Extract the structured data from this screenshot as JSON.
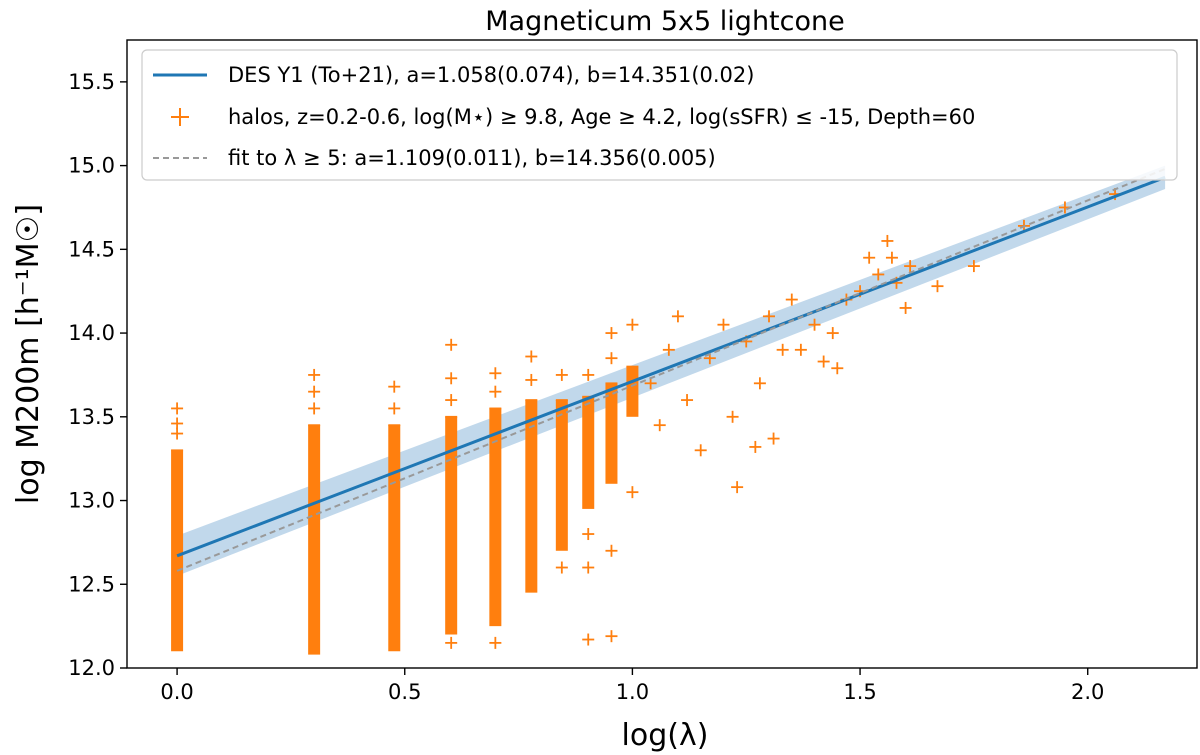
{
  "chart_data": {
    "type": "scatter",
    "title": "Magneticum 5x5 lightcone",
    "xlabel": "log(λ)",
    "ylabel": "log M200m [h⁻¹M☉]",
    "xlim": [
      -0.11,
      2.24
    ],
    "ylim": [
      12.0,
      15.75
    ],
    "x_ticks": [
      0.0,
      0.5,
      1.0,
      1.5,
      2.0
    ],
    "y_ticks": [
      12.0,
      12.5,
      13.0,
      13.5,
      14.0,
      14.5,
      15.0,
      15.5
    ],
    "x_tick_labels": [
      "0.0",
      "0.5",
      "1.0",
      "1.5",
      "2.0"
    ],
    "y_tick_labels": [
      "12.0",
      "12.5",
      "13.0",
      "13.5",
      "14.0",
      "14.5",
      "15.0",
      "15.5"
    ],
    "grid": false,
    "legend_position": "top-left",
    "colors": {
      "des": "#1f77b4",
      "band": "#a6c8e3",
      "halos": "#ff7f0e",
      "fit": "#999999"
    },
    "legend": {
      "des": "DES Y1 (To+21), a=1.058(0.074), b=14.351(0.02)",
      "halos": "halos, z=0.2-0.6, log(M⋆) ≥ 9.8, Age ≥ 4.2, log(sSFR) ≤ -15, Depth=60",
      "fit": "fit to λ ≥ 5: a=1.109(0.011), b=14.356(0.005)"
    },
    "series": [
      {
        "name": "DES Y1 (To+21), a=1.058(0.074), b=14.351(0.02)",
        "kind": "line",
        "x": [
          0.0,
          2.17
        ],
        "y": [
          12.67,
          14.93
        ],
        "band_upper": [
          12.79,
          15.0
        ],
        "band_lower": [
          12.55,
          14.86
        ]
      },
      {
        "name": "fit to λ ≥ 5: a=1.109(0.011), b=14.356(0.005)",
        "kind": "dashed-line",
        "x": [
          0.0,
          2.17
        ],
        "y": [
          12.58,
          14.98
        ]
      },
      {
        "name": "halos, z=0.2-0.6, log(M⋆) ≥ 9.8, Age ≥ 4.2, log(sSFR) ≤ -15, Depth=60",
        "kind": "scatter",
        "columns": [
          {
            "x": 0.0,
            "ymin": 12.1,
            "ymax": 13.3,
            "outliers": [
              13.4,
              13.46,
              13.55
            ]
          },
          {
            "x": 0.301,
            "ymin": 12.08,
            "ymax": 13.45,
            "outliers": [
              13.55,
              13.65,
              13.75
            ]
          },
          {
            "x": 0.477,
            "ymin": 12.1,
            "ymax": 13.45,
            "outliers": [
              13.55,
              13.68
            ]
          },
          {
            "x": 0.602,
            "ymin": 12.2,
            "ymax": 13.5,
            "outliers": [
              12.15,
              13.6,
              13.73,
              13.93
            ]
          },
          {
            "x": 0.699,
            "ymin": 12.25,
            "ymax": 13.55,
            "outliers": [
              12.15,
              13.65,
              13.76
            ]
          },
          {
            "x": 0.778,
            "ymin": 12.45,
            "ymax": 13.6,
            "outliers": [
              13.72,
              13.86
            ]
          },
          {
            "x": 0.845,
            "ymin": 12.7,
            "ymax": 13.6,
            "outliers": [
              12.6,
              13.75
            ]
          },
          {
            "x": 0.903,
            "ymin": 12.95,
            "ymax": 13.62,
            "outliers": [
              12.6,
              12.8,
              12.17,
              13.75
            ]
          },
          {
            "x": 0.954,
            "ymin": 13.1,
            "ymax": 13.7,
            "outliers": [
              12.7,
              12.19,
              13.85,
              14.0
            ]
          },
          {
            "x": 1.0,
            "ymin": 13.5,
            "ymax": 13.8,
            "outliers": [
              13.05,
              14.05
            ]
          }
        ],
        "scatter_points": [
          [
            1.04,
            13.7
          ],
          [
            1.06,
            13.45
          ],
          [
            1.08,
            13.9
          ],
          [
            1.1,
            14.1
          ],
          [
            1.12,
            13.6
          ],
          [
            1.15,
            13.3
          ],
          [
            1.17,
            13.85
          ],
          [
            1.2,
            14.05
          ],
          [
            1.22,
            13.5
          ],
          [
            1.23,
            13.08
          ],
          [
            1.25,
            13.95
          ],
          [
            1.27,
            13.32
          ],
          [
            1.28,
            13.7
          ],
          [
            1.3,
            14.1
          ],
          [
            1.31,
            13.37
          ],
          [
            1.33,
            13.9
          ],
          [
            1.35,
            14.2
          ],
          [
            1.37,
            13.9
          ],
          [
            1.4,
            14.05
          ],
          [
            1.42,
            13.83
          ],
          [
            1.44,
            14.0
          ],
          [
            1.45,
            13.79
          ],
          [
            1.47,
            14.2
          ],
          [
            1.5,
            14.25
          ],
          [
            1.52,
            14.45
          ],
          [
            1.54,
            14.35
          ],
          [
            1.56,
            14.55
          ],
          [
            1.57,
            14.45
          ],
          [
            1.58,
            14.3
          ],
          [
            1.6,
            14.15
          ],
          [
            1.61,
            14.4
          ],
          [
            1.67,
            14.28
          ],
          [
            1.75,
            14.4
          ],
          [
            1.86,
            14.64
          ],
          [
            1.95,
            14.75
          ],
          [
            2.06,
            14.83
          ]
        ]
      }
    ]
  }
}
